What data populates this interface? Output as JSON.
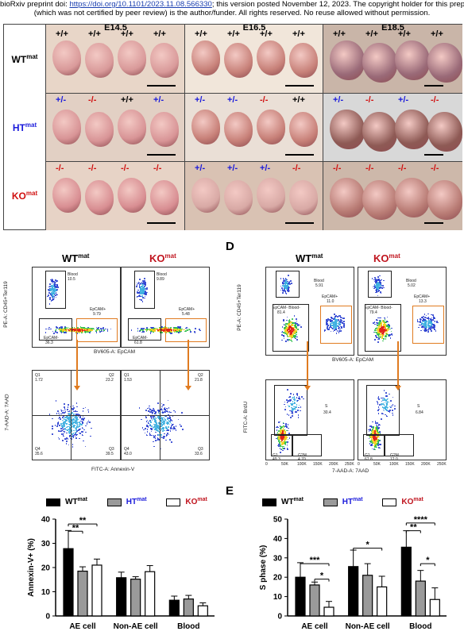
{
  "header": {
    "line1_prefix": "bioRxiv preprint doi: ",
    "line1_link": "https://doi.org/10.1101/2023.11.08.566330",
    "line1_suffix": "; this version posted November 12, 2023. The copyright holder for this preprint",
    "line2": "(which was not certified by peer review) is the author/funder. All rights reserved. No reuse allowed without permission."
  },
  "embryo_grid": {
    "stages": [
      "E14.5",
      "E16.5",
      "E18.5"
    ],
    "rows": [
      {
        "label": "WT",
        "sup": "mat",
        "color": "#000000",
        "cells": [
          [
            "+/+",
            "+/+",
            "+/+",
            "+/+"
          ],
          [
            "+/+",
            "+/+",
            "+/+",
            "+/+"
          ],
          [
            "+/+",
            "+/+",
            "+/+",
            "+/+"
          ]
        ]
      },
      {
        "label": "HT",
        "sup": "mat",
        "color": "#1a1adb",
        "cells": [
          [
            "+/-",
            "-/-",
            "+/+",
            "+/-"
          ],
          [
            "+/-",
            "+/-",
            "-/-",
            "+/+"
          ],
          [
            "+/-",
            "-/-",
            "+/-",
            "-/-"
          ]
        ]
      },
      {
        "label": "KO",
        "sup": "mat",
        "color": "#d01010",
        "cells": [
          [
            "-/-",
            "-/-",
            "-/-",
            "-/-"
          ],
          [
            "+/-",
            "+/-",
            "+/-",
            "-/-"
          ],
          [
            "-/-",
            "-/-",
            "-/-",
            "-/-"
          ]
        ]
      }
    ]
  },
  "genotype_colors": {
    "+/+": "#000000",
    "+/-": "#1a1adb",
    "-/-": "#d01010"
  },
  "panel_c": {
    "title_wt": "WT",
    "title_ko": "KO",
    "sup": "mat",
    "top_y_label": "PE-A: CD45+Ter119",
    "top_x_label": "BV605-A: EpCAM",
    "bottom_y_label": "7-AAD-A: 7AAD",
    "bottom_x_label": "FITC-A: Annexin-V",
    "wt_top": {
      "blood_label": "Blood",
      "blood": "10.5",
      "epcam_pos_label": "EpCAM+",
      "epcam_pos": "9.79",
      "epcam_label": "EpCAM-",
      "epcam": "36.3"
    },
    "ko_top": {
      "blood_label": "Blood",
      "blood": "9.89",
      "epcam_pos_label": "EpCAM+",
      "epcam_pos": "5.48",
      "epcam_label": "EpCAM-",
      "epcam": "61.8"
    },
    "wt_bottom": {
      "q1_label": "Q1",
      "q1": "1.72",
      "q2_label": "Q2",
      "q2": "23.2",
      "q4_label": "Q4",
      "q4": "35.6",
      "q3_label": "Q3",
      "q3": "39.5"
    },
    "ko_bottom": {
      "q1_label": "Q1",
      "q1": "1.53",
      "q2_label": "Q2",
      "q2": "21.8",
      "q4_label": "Q4",
      "q4": "43.0",
      "q3_label": "Q3",
      "q3": "33.6"
    }
  },
  "panel_d": {
    "letter": "D",
    "title_wt": "WT",
    "title_ko": "KO",
    "sup": "mat",
    "top_y_label": "PE-A: CD45+Ter119",
    "top_x_label": "BV605-A: EpCAM",
    "bottom_y_label": "FITC-A: BrdU",
    "bottom_x_label": "7-AAD-A: 7AAD",
    "wt_top": {
      "blood_label": "Blood",
      "blood": "5.91",
      "epcam_blood_label": "EpCAM- Blood-",
      "epcam_blood": "81.4",
      "epcam_pos_label": "EpCAM+",
      "epcam_pos": "11.0"
    },
    "ko_top": {
      "blood_label": "Blood",
      "blood": "5.02",
      "epcam_blood_label": "EpCAM- Blood-",
      "epcam_blood": "79.4",
      "epcam_pos_label": "EpCAM+",
      "epcam_pos": "13.3"
    },
    "wt_bottom": {
      "s_label": "S",
      "s": "30.4",
      "g1_label": "G1",
      "g1": "49.3",
      "g2_label": "G2M",
      "g2": "4.70"
    },
    "ko_bottom": {
      "s_label": "S",
      "s": "6.84",
      "g1_label": "G1",
      "g1": "67.8",
      "g2_label": "G2M",
      "g2": "12.0"
    },
    "x_ticks": [
      "0",
      "50K",
      "100K",
      "150K",
      "200K",
      "250K"
    ]
  },
  "legend": {
    "wt": "WT",
    "ht": "HT",
    "ko": "KO",
    "sup": "mat",
    "wt_color": "#000000",
    "ht_color": "#1a1adb",
    "ko_color": "#c0141e"
  },
  "panel_e_letter": "E",
  "colors": {
    "wt_bar": "#000000",
    "ht_bar": "#9a9a9a",
    "ko_bar": "#ffffff",
    "gate": "#e07b20"
  },
  "chart_data": [
    {
      "type": "bar",
      "ylabel": "Annexin-V+ (%)",
      "ylim": [
        0,
        40
      ],
      "yticks": [
        0,
        10,
        20,
        30,
        40
      ],
      "categories": [
        "AE cell",
        "Non-AE cell",
        "Blood"
      ],
      "series": [
        {
          "name": "WT",
          "values": [
            27.8,
            15.8,
            6.5
          ],
          "errors": [
            7.5,
            2.3,
            1.7
          ]
        },
        {
          "name": "HT",
          "values": [
            18.5,
            15.2,
            7.0
          ],
          "errors": [
            1.8,
            1.0,
            1.5
          ]
        },
        {
          "name": "KO",
          "values": [
            21.0,
            18.3,
            4.2
          ],
          "errors": [
            2.5,
            2.5,
            1.2
          ]
        }
      ],
      "significance": [
        {
          "from": 0,
          "to": 2,
          "label": "**"
        },
        {
          "from": 0,
          "to": 1,
          "label": "**"
        }
      ]
    },
    {
      "type": "bar",
      "ylabel": "S phase (%)",
      "ylim": [
        0,
        50
      ],
      "yticks": [
        0,
        10,
        20,
        30,
        40,
        50
      ],
      "categories": [
        "AE cell",
        "Non-AE cell",
        "Blood"
      ],
      "series": [
        {
          "name": "WT",
          "values": [
            20.0,
            25.5,
            35.5
          ],
          "errors": [
            7.5,
            8.5,
            8.5
          ]
        },
        {
          "name": "HT",
          "values": [
            16.0,
            21.0,
            18.0
          ],
          "errors": [
            1.5,
            6.0,
            5.5
          ]
        },
        {
          "name": "KO",
          "values": [
            4.5,
            15.0,
            8.5
          ],
          "errors": [
            3.0,
            5.5,
            6.0
          ]
        }
      ],
      "significance": [
        {
          "group": 0,
          "from": 0,
          "to": 2,
          "label": "***",
          "y": 27
        },
        {
          "group": 0,
          "from": 1,
          "to": 2,
          "label": "*",
          "y": 19
        },
        {
          "group": 1,
          "from": 0,
          "to": 2,
          "label": "*",
          "y": 35
        },
        {
          "group": 2,
          "from": 0,
          "to": 2,
          "label": "****",
          "y": 48
        },
        {
          "group": 2,
          "from": 0,
          "to": 1,
          "label": "**",
          "y": 44
        },
        {
          "group": 2,
          "from": 1,
          "to": 2,
          "label": "*",
          "y": 27
        }
      ]
    }
  ]
}
